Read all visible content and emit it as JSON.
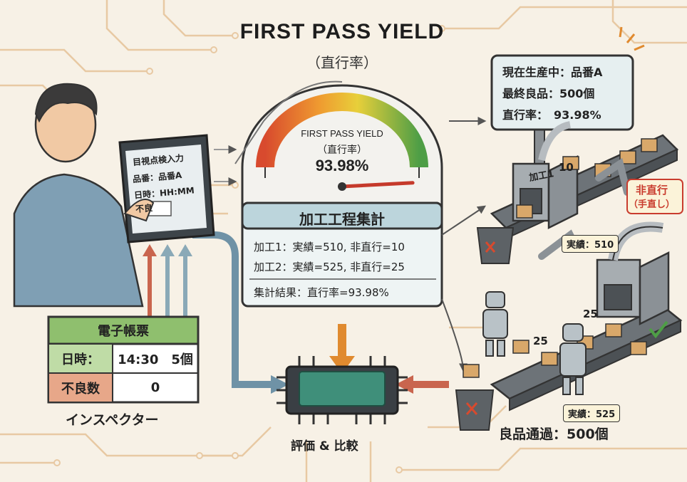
{
  "title": "FIRST PASS YIELD",
  "subtitle": "（直行率）",
  "gauge": {
    "label": "FIRST PASS YIELD",
    "sublabel": "（直行率）",
    "value_text": "93.98%",
    "value": 93.98
  },
  "summary": {
    "title": "加工工程集計",
    "line1": "加工1：実績=510, 非直行=10",
    "line2": "加工2：実績=525, 非直行=25",
    "result": "集計結果：直行率=93.98%"
  },
  "status_panel": {
    "line1": "現在生産中：品番A",
    "line2": "最終良品：500個",
    "line3": "直行率：　93.98%"
  },
  "tablet": {
    "title": "目視点検入力",
    "part": "品番：品番A",
    "datetime": "日時：HH:MM",
    "defect": "不良"
  },
  "ledger": {
    "title": "電子帳票",
    "datetime_label": "日時：",
    "datetime_value": "14:30　5個",
    "defect_label": "不良数",
    "defect_value": "0"
  },
  "labels": {
    "inspector": "インスペクター",
    "evaluate": "評価 & 比較",
    "machine1": "加工1",
    "machine1_num": "10",
    "rework_line1": "非直行",
    "rework_line2": "（手直し）",
    "actual1": "実績：510",
    "actual2": "実績：525",
    "count25a": "25",
    "count25b": "25",
    "good_pass": "良品通過：500個"
  },
  "colors": {
    "background": "#f7f1e6",
    "circuit": "#e8c9a3",
    "chip": "#3f8f7a",
    "arrow_blue": "#6f92a6",
    "arrow_orange": "#e08a2f",
    "arrow_red": "#c9654e",
    "panel_fill": "#e6eff0",
    "ledger_green": "#8fbf6e",
    "ledger_red": "#e7a789"
  }
}
